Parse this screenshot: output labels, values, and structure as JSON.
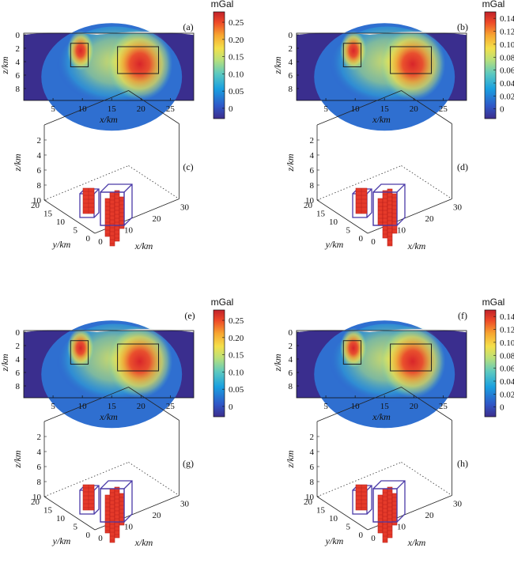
{
  "figure": {
    "section_heatmap": {
      "x_label": "x/km",
      "z_label": "z/km",
      "x_ticks": [
        "5",
        "10",
        "15",
        "20",
        "25"
      ],
      "z_ticks": [
        "0",
        "2",
        "4",
        "6",
        "8"
      ]
    },
    "model_3d": {
      "x_label": "x/km",
      "y_label": "y/km",
      "z_label": "z/km",
      "x_ticks": [
        "0",
        "10",
        "20",
        "30"
      ],
      "y_ticks": [
        "0",
        "5",
        "10",
        "15",
        "20"
      ],
      "z_ticks": [
        "2",
        "4",
        "6",
        "8",
        "10"
      ]
    },
    "colorbar_unit": "mGal",
    "panels": [
      {
        "label": "(a)",
        "colorbar_ticks": [
          "0.25",
          "0.20",
          "0.15",
          "0.10",
          "0.05",
          "0"
        ]
      },
      {
        "label": "(b)",
        "colorbar_ticks": [
          "0.14",
          "0.12",
          "0.10",
          "0.08",
          "0.06",
          "0.04",
          "0.02",
          "0"
        ]
      },
      {
        "label": "(c)"
      },
      {
        "label": "(d)"
      },
      {
        "label": "(e)",
        "colorbar_ticks": [
          "0.25",
          "0.20",
          "0.15",
          "0.10",
          "0.05",
          "0"
        ]
      },
      {
        "label": "(f)",
        "colorbar_ticks": [
          "0.14",
          "0.12",
          "0.10",
          "0.08",
          "0.06",
          "0.04",
          "0.02",
          "0"
        ]
      },
      {
        "label": "(g)"
      },
      {
        "label": "(h)"
      }
    ]
  },
  "chart_data": [
    {
      "panel": "(a)",
      "type": "heatmap",
      "xlabel": "x/km",
      "ylabel": "z/km",
      "xlim": [
        0,
        29
      ],
      "ylim": [
        10,
        0
      ],
      "colorbar": {
        "label": "mGal",
        "range": [
          -0.03,
          0.28
        ]
      },
      "boxes": [
        {
          "x": [
            8,
            11
          ],
          "z": [
            1.5,
            5
          ]
        },
        {
          "x": [
            16,
            23
          ],
          "z": [
            2,
            6
          ]
        }
      ]
    },
    {
      "panel": "(b)",
      "type": "heatmap",
      "xlabel": "x/km",
      "ylabel": "z/km",
      "xlim": [
        0,
        29
      ],
      "ylim": [
        10,
        0
      ],
      "colorbar": {
        "label": "mGal",
        "range": [
          -0.015,
          0.15
        ]
      },
      "boxes": [
        {
          "x": [
            8,
            11
          ],
          "z": [
            1.5,
            5
          ]
        },
        {
          "x": [
            16,
            23
          ],
          "z": [
            2,
            6
          ]
        }
      ]
    },
    {
      "panel": "(e)",
      "type": "heatmap",
      "xlabel": "x/km",
      "ylabel": "z/km",
      "xlim": [
        0,
        29
      ],
      "ylim": [
        10,
        0
      ],
      "colorbar": {
        "label": "mGal",
        "range": [
          -0.03,
          0.28
        ]
      },
      "boxes": [
        {
          "x": [
            8,
            11
          ],
          "z": [
            1.5,
            5
          ]
        },
        {
          "x": [
            16,
            23
          ],
          "z": [
            2,
            6
          ]
        }
      ]
    },
    {
      "panel": "(f)",
      "type": "heatmap",
      "xlabel": "x/km",
      "ylabel": "z/km",
      "xlim": [
        0,
        29
      ],
      "ylim": [
        10,
        0
      ],
      "colorbar": {
        "label": "mGal",
        "range": [
          -0.015,
          0.15
        ]
      },
      "boxes": [
        {
          "x": [
            8,
            11
          ],
          "z": [
            1.5,
            5
          ]
        },
        {
          "x": [
            16,
            23
          ],
          "z": [
            2,
            6
          ]
        }
      ]
    }
  ]
}
